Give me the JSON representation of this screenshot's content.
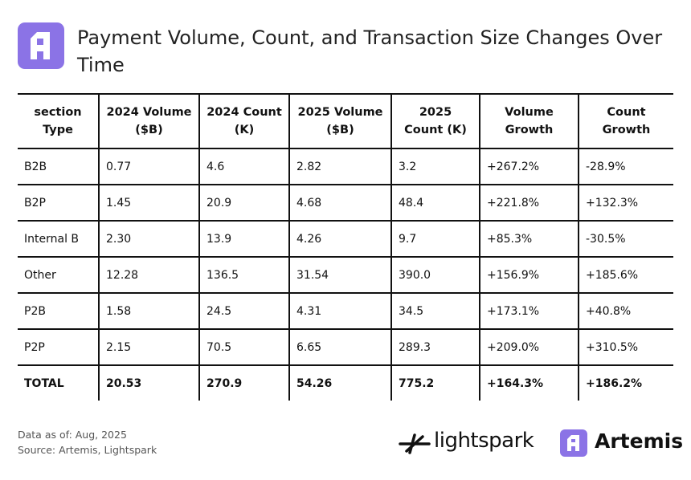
{
  "header": {
    "title": "Payment Volume, Count, and Transaction Size Changes Over Time"
  },
  "table": {
    "columns": [
      "section Type",
      "2024 Volume ($B)",
      "2024 Count (K)",
      "2025 Volume ($B)",
      "2025 Count (K)",
      "Volume Growth",
      "Count Growth"
    ],
    "rows": [
      [
        "B2B",
        "0.77",
        "4.6",
        "2.82",
        "3.2",
        "+267.2%",
        "-28.9%"
      ],
      [
        "B2P",
        "1.45",
        "20.9",
        "4.68",
        "48.4",
        "+221.8%",
        "+132.3%"
      ],
      [
        "Internal B",
        "2.30",
        "13.9",
        "4.26",
        "9.7",
        "+85.3%",
        "-30.5%"
      ],
      [
        "Other",
        "12.28",
        "136.5",
        "31.54",
        "390.0",
        "+156.9%",
        "+185.6%"
      ],
      [
        "P2B",
        "1.58",
        "24.5",
        "4.31",
        "34.5",
        "+173.1%",
        "+40.8%"
      ],
      [
        "P2P",
        "2.15",
        "70.5",
        "6.65",
        "289.3",
        "+209.0%",
        "+310.5%"
      ],
      [
        "TOTAL",
        "20.53",
        "270.9",
        "54.26",
        "775.2",
        "+164.3%",
        "+186.2%"
      ]
    ]
  },
  "footer": {
    "date_note": "Data as of: Aug, 2025",
    "source": "Source: Artemis, Lightspark",
    "logos": [
      "lightspark",
      "Artemis"
    ]
  }
}
